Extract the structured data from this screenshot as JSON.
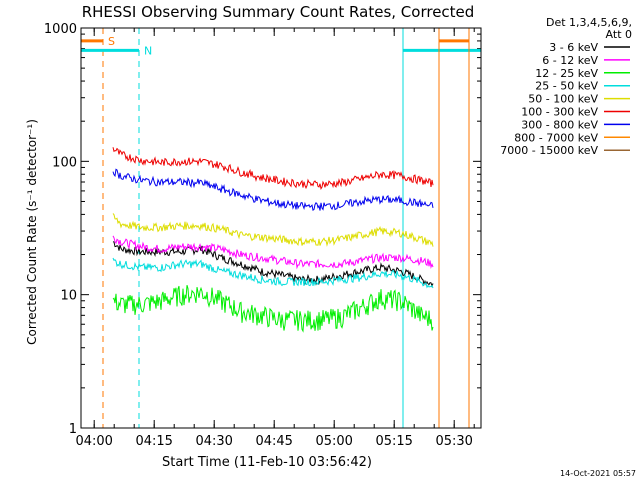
{
  "chart_data": {
    "type": "line",
    "title": "RHESSI Observing Summary Count Rates, Corrected",
    "xlabel": "Start Time (11-Feb-10 03:56:42)",
    "ylabel": "Corrected Count Rate (s⁻¹ detector⁻¹)",
    "x_unit": "minutes after 03:56:42 UT",
    "xlim": [
      0,
      100
    ],
    "ylim": [
      1,
      1000
    ],
    "y_scale": "log",
    "x_ticks": [
      {
        "value": 3.3,
        "label": "04:00"
      },
      {
        "value": 18.3,
        "label": "04:15"
      },
      {
        "value": 33.3,
        "label": "04:30"
      },
      {
        "value": 48.3,
        "label": "04:45"
      },
      {
        "value": 63.3,
        "label": "05:00"
      },
      {
        "value": 78.3,
        "label": "05:15"
      },
      {
        "value": 93.3,
        "label": "05:30"
      }
    ],
    "y_ticks": [
      {
        "value": 1,
        "label": "1"
      },
      {
        "value": 10,
        "label": "10"
      },
      {
        "value": 100,
        "label": "100"
      },
      {
        "value": 1000,
        "label": "1000"
      }
    ],
    "legend_header": [
      "Det 1,3,4,5,6,9,",
      "Att 0"
    ],
    "legend_position": "right",
    "footer_date": "14-Oct-2021 05:57",
    "x_samples": [
      8,
      10,
      15,
      20,
      25,
      30,
      35,
      40,
      45,
      50,
      55,
      60,
      65,
      70,
      75,
      80,
      85,
      88
    ],
    "series": [
      {
        "name": "3 - 6 keV",
        "color": "#000000",
        "values": [
          25,
          22,
          21,
          21,
          21,
          22,
          19,
          17,
          15,
          14,
          13,
          13,
          14,
          15,
          16,
          15,
          13,
          12
        ]
      },
      {
        "name": "6 - 12 keV",
        "color": "#ff00ff",
        "values": [
          27,
          25,
          23,
          22,
          23,
          23,
          22,
          20,
          19,
          18,
          17,
          17,
          17,
          18,
          19,
          19,
          18,
          17
        ]
      },
      {
        "name": "12 - 25 keV",
        "color": "#00ee00",
        "values": [
          9,
          8.5,
          8.5,
          9,
          10,
          10.5,
          9,
          7.5,
          7,
          6.5,
          6.5,
          6.5,
          6.8,
          8,
          9.5,
          9,
          7,
          6.5
        ]
      },
      {
        "name": "25 - 50 keV",
        "color": "#00dddd",
        "values": [
          18,
          17,
          16,
          16,
          17,
          17,
          15,
          14,
          13,
          12.5,
          12.5,
          12.5,
          13,
          13.5,
          14.5,
          14,
          12.5,
          11.5
        ]
      },
      {
        "name": "50 - 100 keV",
        "color": "#dddd00",
        "values": [
          38,
          34,
          32,
          32,
          33,
          33,
          31,
          28,
          27,
          26,
          25,
          25,
          26,
          28,
          30,
          29,
          26,
          24
        ]
      },
      {
        "name": "100 - 300 keV",
        "color": "#ee0000",
        "values": [
          125,
          112,
          102,
          98,
          100,
          100,
          93,
          83,
          76,
          71,
          68,
          67,
          69,
          74,
          80,
          78,
          72,
          68
        ]
      },
      {
        "name": "300 - 800 keV",
        "color": "#0000ee",
        "values": [
          85,
          78,
          72,
          70,
          70,
          69,
          62,
          56,
          51,
          48,
          46,
          46,
          47,
          50,
          52,
          51,
          48,
          46
        ]
      },
      {
        "name": "800 - 7000 keV",
        "color": "#ff8800",
        "values": []
      },
      {
        "name": "7000 - 15000 keV",
        "color": "#996633",
        "values": []
      }
    ],
    "events": [
      {
        "label": "S",
        "x_start": 0,
        "x_end": 5.5,
        "color": "#ff7700",
        "style": "dashed",
        "flag_y": 800
      },
      {
        "label": "N",
        "x_start": 0,
        "x_end": 14.5,
        "color": "#00dddd",
        "style": "dashed",
        "flag_y": 680
      },
      {
        "label": "",
        "x_start": 80.5,
        "x_end": 100,
        "color": "#00dddd",
        "style": "solid",
        "flag_y": 680
      },
      {
        "label": "",
        "x_start": 89.5,
        "x_end": 97,
        "color": "#ff7700",
        "style": "solid",
        "flag_y": 800
      }
    ]
  }
}
